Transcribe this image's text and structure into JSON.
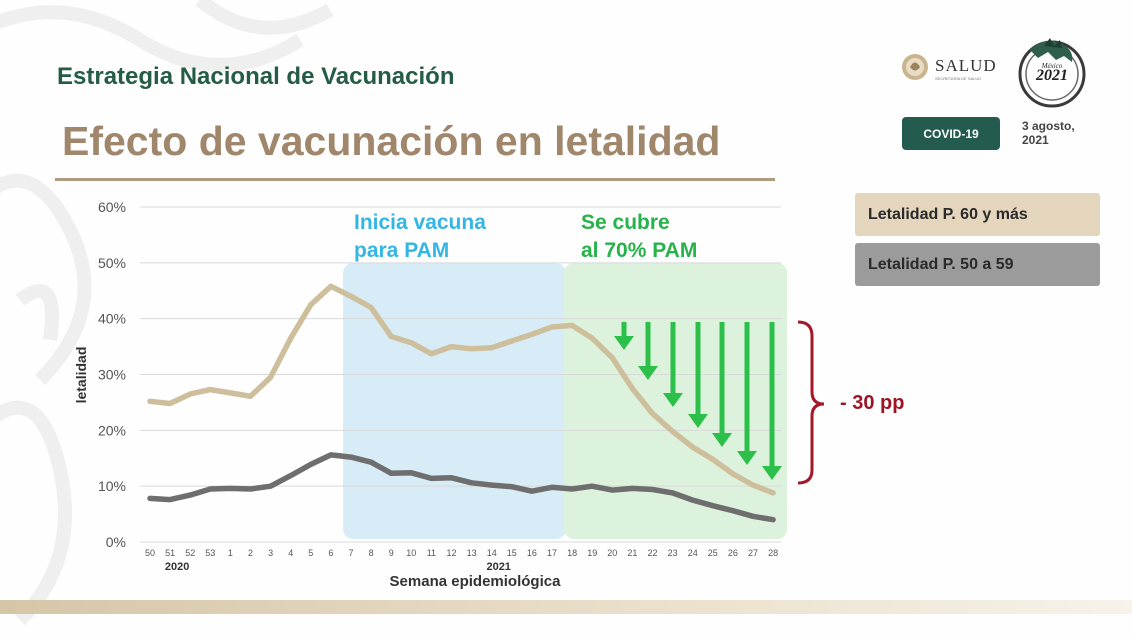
{
  "header": {
    "subtitle": "Estrategia Nacional de Vacunación",
    "title": "Efecto de vacunación en letalidad",
    "logo_text": "SALUD",
    "logo_subtext": "SECRETARÍA DE SALUD",
    "badge": "COVID-19",
    "date_line1": "3 agosto,",
    "date_line2": "2021"
  },
  "legend": {
    "item1": "Letalidad P. 60 y más",
    "item2": "Letalidad P. 50 a 59"
  },
  "annotations": {
    "blue_line1": "Inicia vacuna",
    "blue_line2": "para PAM",
    "green_line1": "Se cubre",
    "green_line2": "al 70% PAM",
    "reduction": "- 30 pp"
  },
  "colors": {
    "series_60": "#cdbf9c",
    "series_50": "#6e6e6e",
    "blue_zone": "#d8ecf8",
    "green_zone": "#dcf2dc",
    "arrow": "#2cc04a",
    "brace": "#a4182a"
  },
  "chart_data": {
    "type": "line",
    "title": "",
    "xlabel": "Semana epidemiológica",
    "ylabel": "letalidad",
    "ylim": [
      0,
      60
    ],
    "yticks": [
      "0%",
      "10%",
      "20%",
      "30%",
      "40%",
      "50%",
      "60%"
    ],
    "categories": [
      "50",
      "51",
      "52",
      "53",
      "1",
      "2",
      "3",
      "4",
      "5",
      "6",
      "7",
      "8",
      "9",
      "10",
      "11",
      "12",
      "13",
      "14",
      "15",
      "16",
      "17",
      "18",
      "19",
      "20",
      "21",
      "22",
      "23",
      "24",
      "25",
      "26",
      "27",
      "28"
    ],
    "year_labels": [
      {
        "label": "2020",
        "at": "51"
      },
      {
        "label": "2021",
        "at": "14"
      }
    ],
    "shaded_regions": [
      {
        "from": "7",
        "to": "17",
        "color": "blue"
      },
      {
        "from": "18",
        "to": "28",
        "color": "green"
      }
    ],
    "series": [
      {
        "name": "Letalidad P. 60 y más",
        "values": [
          25.2,
          24.8,
          26.5,
          27.3,
          26.7,
          26.1,
          29.5,
          36.5,
          42.5,
          45.8,
          44.0,
          42.0,
          36.8,
          35.7,
          33.7,
          35.0,
          34.6,
          34.8,
          36.0,
          37.2,
          38.5,
          38.8,
          36.5,
          33.0,
          27.5,
          23.0,
          19.8,
          17.0,
          14.8,
          12.2,
          10.2,
          8.8
        ]
      },
      {
        "name": "Letalidad P. 50 a 59",
        "values": [
          7.8,
          7.6,
          8.4,
          9.5,
          9.6,
          9.5,
          10.0,
          11.9,
          13.9,
          15.6,
          15.2,
          14.3,
          12.3,
          12.4,
          11.4,
          11.5,
          10.6,
          10.2,
          9.9,
          9.1,
          9.8,
          9.5,
          10.0,
          9.3,
          9.6,
          9.4,
          8.8,
          7.5,
          6.5,
          5.6,
          4.6,
          4.0
        ]
      }
    ]
  }
}
